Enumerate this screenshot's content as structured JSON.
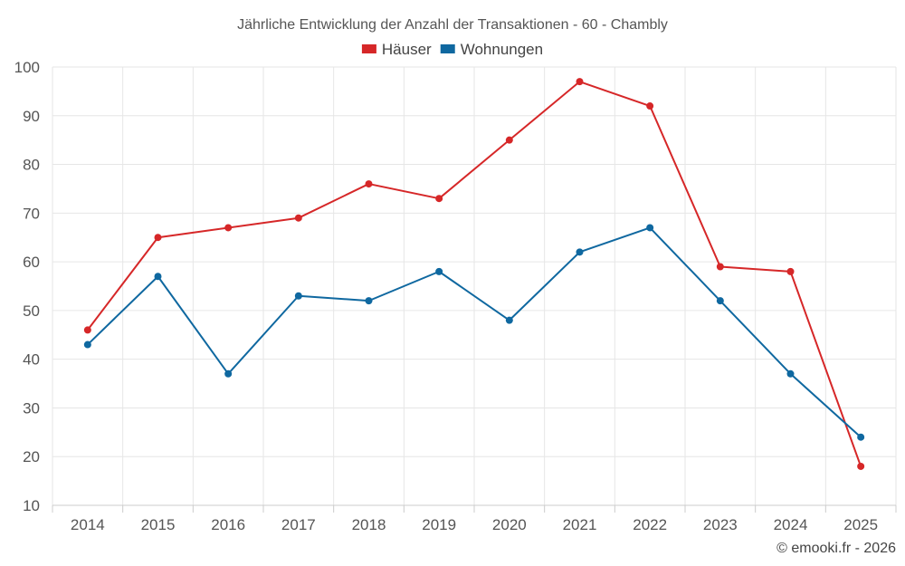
{
  "chart_data": {
    "type": "line",
    "title": "Jährliche Entwicklung der Anzahl der Transaktionen - 60 - Chambly",
    "categories": [
      "2014",
      "2015",
      "2016",
      "2017",
      "2018",
      "2019",
      "2020",
      "2021",
      "2022",
      "2023",
      "2024",
      "2025"
    ],
    "series": [
      {
        "name": "Häuser",
        "color": "#d62728",
        "values": [
          46,
          65,
          67,
          69,
          76,
          73,
          85,
          97,
          92,
          59,
          58,
          18
        ]
      },
      {
        "name": "Wohnungen",
        "color": "#0f68a0",
        "values": [
          43,
          57,
          37,
          53,
          52,
          58,
          48,
          62,
          67,
          52,
          37,
          24
        ]
      }
    ],
    "ylim": [
      10,
      100
    ],
    "yticks": [
      10,
      20,
      30,
      40,
      50,
      60,
      70,
      80,
      90,
      100
    ],
    "xlabel": "",
    "ylabel": "",
    "grid": true,
    "legend": "top-center"
  },
  "credit": "© emooki.fr - 2026"
}
